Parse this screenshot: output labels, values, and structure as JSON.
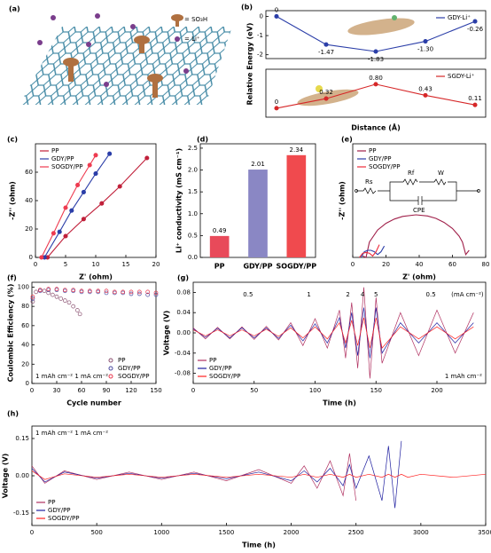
{
  "illustration": {
    "label": "(a)",
    "legend": [
      "= SO₃H",
      "= Li⁺"
    ]
  },
  "chart_data": [
    {
      "label": "(b)",
      "type": "line",
      "markers": true,
      "ylabel": "Relative Energy (eV)",
      "ylim": [
        -2.2,
        0.3
      ],
      "yticks": [
        0,
        -1,
        -2
      ],
      "legend": "upper right",
      "series": [
        {
          "name": "GDY-Li⁺",
          "color": "#2b3ea8",
          "values": [
            0,
            -1.47,
            -1.83,
            -1.3,
            -0.26
          ],
          "value_labels": [
            "0",
            "-1.47",
            "-1.83",
            "-1.30",
            "-0.26"
          ]
        }
      ]
    },
    {
      "type": "line",
      "markers": true,
      "xlabel": "Distance (Å)",
      "ylim": [
        -0.3,
        1.3
      ],
      "legend": "upper right",
      "series": [
        {
          "name": "SGDY-Li⁺",
          "color": "#d62728",
          "values": [
            0,
            0.32,
            0.8,
            0.43,
            0.11
          ],
          "value_labels": [
            "0",
            "0.32",
            "0.80",
            "0.43",
            "0.11"
          ]
        }
      ]
    },
    {
      "label": "(c)",
      "type": "line",
      "markers": true,
      "xlabel": "Z' (ohm)",
      "ylabel": "-Z'' (ohm)",
      "xlim": [
        0,
        20
      ],
      "xticks": [
        0,
        5,
        10,
        15,
        20
      ],
      "ylim": [
        0,
        80
      ],
      "yticks": [
        0,
        20,
        40,
        60
      ],
      "legend": "upper left",
      "series": [
        {
          "name": "PP",
          "color": "#c0203a",
          "x": [
            2,
            5,
            8,
            11,
            14,
            18.5
          ],
          "values": [
            0,
            15,
            27,
            38,
            50,
            70
          ]
        },
        {
          "name": "GDY/PP",
          "color": "#2b3ea8",
          "x": [
            1.5,
            4,
            6,
            8,
            10,
            12.3
          ],
          "values": [
            0,
            18,
            33,
            46,
            59,
            73
          ]
        },
        {
          "name": "SOGDY/PP",
          "color": "#ee3b50",
          "x": [
            1,
            3,
            5,
            7,
            9,
            10
          ],
          "values": [
            0,
            17,
            35,
            51,
            65,
            72
          ]
        }
      ]
    },
    {
      "label": "(d)",
      "type": "bar",
      "ylabel": "Li⁺ conductivity (mS cm⁻¹)",
      "categories": [
        "PP",
        "GDY/PP",
        "SOGDY/PP"
      ],
      "values": [
        0.49,
        2.01,
        2.34
      ],
      "colors": [
        "#e84a5a",
        "#8a87c4",
        "#f04a4e"
      ],
      "ylim": [
        0,
        2.6
      ],
      "yticks": [
        {
          "value": 0,
          "label": "0.0"
        },
        0.5,
        {
          "value": 1,
          "label": "1.0"
        },
        1.5,
        {
          "value": 2,
          "label": "2.0"
        },
        2.5
      ]
    },
    {
      "label": "(e)",
      "type": "line",
      "xlabel": "Z' (ohm)",
      "ylabel": "-Z'' (ohm)",
      "xlim": [
        0,
        80
      ],
      "xticks": [
        0,
        20,
        40,
        60,
        80
      ],
      "ylim": [
        0,
        80
      ],
      "legend": "upper left",
      "circuit": [
        "Rs",
        "Rf",
        "W",
        "CPE"
      ],
      "series": [
        {
          "name": "PP",
          "color": "#a0204a",
          "x": [
            6,
            8,
            10,
            15,
            20,
            25,
            30,
            38,
            45,
            50,
            55,
            60,
            64,
            66,
            68,
            70
          ],
          "values": [
            1,
            0,
            10.8,
            19.3,
            24,
            27,
            28.9,
            30,
            29.2,
            27.5,
            24.6,
            20.4,
            15,
            10.8,
            2,
            5
          ]
        },
        {
          "name": "GDY/PP",
          "color": "#2b3ea8",
          "x": [
            5,
            7,
            9,
            11,
            13,
            15,
            17,
            19
          ],
          "values": [
            0,
            4,
            5,
            5,
            4,
            2,
            4,
            8
          ]
        },
        {
          "name": "SOGDY/PP",
          "color": "#ee2b3b",
          "x": [
            4,
            6,
            8,
            10,
            12,
            14,
            16
          ],
          "values": [
            0,
            3,
            3.5,
            3,
            1,
            4,
            9
          ]
        }
      ]
    },
    {
      "label": "(f)",
      "type": "scatter",
      "xlabel": "Cycle number",
      "ylabel": "Coulombic Efficiency (%)",
      "xlim": [
        0,
        150
      ],
      "xticks": [
        0,
        30,
        60,
        90,
        120,
        150
      ],
      "ylim": [
        0,
        105
      ],
      "yticks": [
        0,
        20,
        40,
        60,
        80,
        100
      ],
      "legend": "lower right",
      "note": "1 mAh cm⁻²  1 mA cm⁻²",
      "series": [
        {
          "name": "PP",
          "color": "#8a5070",
          "x": [
            1,
            5,
            10,
            15,
            20,
            25,
            30,
            35,
            40,
            45,
            50,
            55,
            58
          ],
          "values": [
            85,
            95,
            97,
            96,
            94,
            92,
            90,
            88,
            86,
            84,
            80,
            76,
            72
          ]
        },
        {
          "name": "GDY/PP",
          "color": "#4a4aa0",
          "x": [
            1,
            10,
            20,
            30,
            40,
            50,
            60,
            70,
            80,
            90,
            100,
            110,
            120,
            130,
            140,
            150
          ],
          "values": [
            88,
            96,
            97,
            97,
            96,
            96,
            95,
            95,
            95,
            94,
            94,
            94,
            93,
            93,
            92,
            92
          ]
        },
        {
          "name": "SOGDY/PP",
          "color": "#e8334a",
          "x": [
            1,
            10,
            20,
            30,
            40,
            50,
            60,
            70,
            80,
            90,
            100,
            110,
            120,
            130,
            140,
            150
          ],
          "values": [
            90,
            97,
            98,
            98,
            97,
            97,
            96,
            96,
            96,
            96,
            95,
            95,
            95,
            95,
            95,
            94
          ]
        }
      ]
    },
    {
      "label": "(g)",
      "type": "line",
      "xlabel": "Time (h)",
      "ylabel": "Voltage (V)",
      "xlim": [
        0,
        240
      ],
      "xticks": [
        0,
        50,
        100,
        150,
        200
      ],
      "ylim": [
        -0.1,
        0.1
      ],
      "yticks": [
        -0.08,
        -0.04,
        {
          "value": 0,
          "label": "0.00"
        },
        0.04,
        0.08
      ],
      "legend": "lower left",
      "note": "1 mAh cm⁻²",
      "annotations": [
        "0.5",
        "1",
        "2",
        "4",
        "5",
        "0.5",
        "(mA cm⁻²)"
      ],
      "x": [
        0,
        10,
        20,
        30,
        40,
        50,
        60,
        70,
        80,
        90,
        100,
        110,
        120,
        125,
        130,
        135,
        140,
        145,
        150,
        155,
        170,
        185,
        200,
        215,
        230
      ],
      "series": [
        {
          "name": "PP",
          "color": "#b03060",
          "values": [
            0.01,
            -0.012,
            0.011,
            -0.012,
            0.012,
            -0.013,
            0.013,
            -0.014,
            0.02,
            -0.025,
            0.028,
            -0.03,
            0.045,
            -0.05,
            0.06,
            -0.07,
            0.09,
            -0.09,
            0.07,
            -0.06,
            0.04,
            -0.045,
            0.045,
            -0.04,
            0.04
          ]
        },
        {
          "name": "GDY/PP",
          "color": "#1f1fa0",
          "values": [
            0.008,
            -0.009,
            0.009,
            -0.01,
            0.01,
            -0.01,
            0.01,
            -0.011,
            0.015,
            -0.016,
            0.018,
            -0.02,
            0.03,
            -0.03,
            0.04,
            -0.045,
            0.05,
            -0.05,
            0.05,
            -0.04,
            0.02,
            -0.02,
            0.02,
            -0.02,
            0.02
          ]
        },
        {
          "name": "SOGDY/PP",
          "color": "#ff2020",
          "values": [
            0.006,
            -0.006,
            0.006,
            -0.006,
            0.006,
            -0.006,
            0.007,
            -0.007,
            0.01,
            -0.01,
            0.012,
            -0.012,
            0.02,
            -0.02,
            0.025,
            -0.025,
            0.03,
            -0.03,
            0.03,
            -0.03,
            0.012,
            -0.012,
            0.012,
            -0.012,
            0.012
          ]
        }
      ]
    },
    {
      "label": "(h)",
      "type": "line",
      "xlabel": "Time (h)",
      "ylabel": "Voltage (V)",
      "xlim": [
        0,
        3500
      ],
      "xticks": [
        0,
        500,
        1000,
        1500,
        2000,
        2500,
        3000,
        3500
      ],
      "ylim": [
        -0.2,
        0.2
      ],
      "yticks": [
        -0.15,
        {
          "value": 0,
          "label": "0.00"
        },
        0.15
      ],
      "legend": "lower left",
      "note": "1 mAh cm⁻²  1 mA cm⁻²",
      "x": [
        0,
        100,
        250,
        500,
        750,
        1000,
        1250,
        1500,
        1750,
        2000,
        2100,
        2200,
        2300,
        2400,
        2450,
        2500,
        2600,
        2700,
        2750,
        2800,
        2850,
        2900,
        3000,
        3250,
        3500
      ],
      "series": [
        {
          "name": "PP",
          "color": "#b03060",
          "values": [
            0.04,
            -0.03,
            0.02,
            -0.015,
            0.015,
            -0.015,
            0.015,
            -0.02,
            0.025,
            -0.03,
            0.04,
            -0.05,
            0.06,
            -0.08,
            0.09,
            -0.1,
            null,
            null,
            null,
            null,
            null,
            null,
            null,
            null,
            null
          ]
        },
        {
          "name": "GDY/PP",
          "color": "#1f1fa0",
          "values": [
            0.03,
            -0.025,
            0.015,
            -0.01,
            0.01,
            -0.01,
            0.01,
            -0.012,
            0.015,
            -0.02,
            0.02,
            -0.025,
            0.03,
            -0.04,
            0.045,
            -0.05,
            0.08,
            -0.1,
            0.12,
            -0.13,
            0.14,
            null,
            null,
            null,
            null
          ]
        },
        {
          "name": "SOGDY/PP",
          "color": "#ff2020",
          "values": [
            0.02,
            -0.015,
            0.008,
            -0.006,
            0.006,
            -0.006,
            0.006,
            -0.006,
            0.006,
            -0.006,
            0.006,
            -0.006,
            0.006,
            -0.006,
            0.006,
            -0.006,
            0.006,
            -0.006,
            0.006,
            -0.006,
            0.006,
            -0.006,
            0.006,
            -0.006,
            0.006
          ]
        }
      ]
    }
  ]
}
